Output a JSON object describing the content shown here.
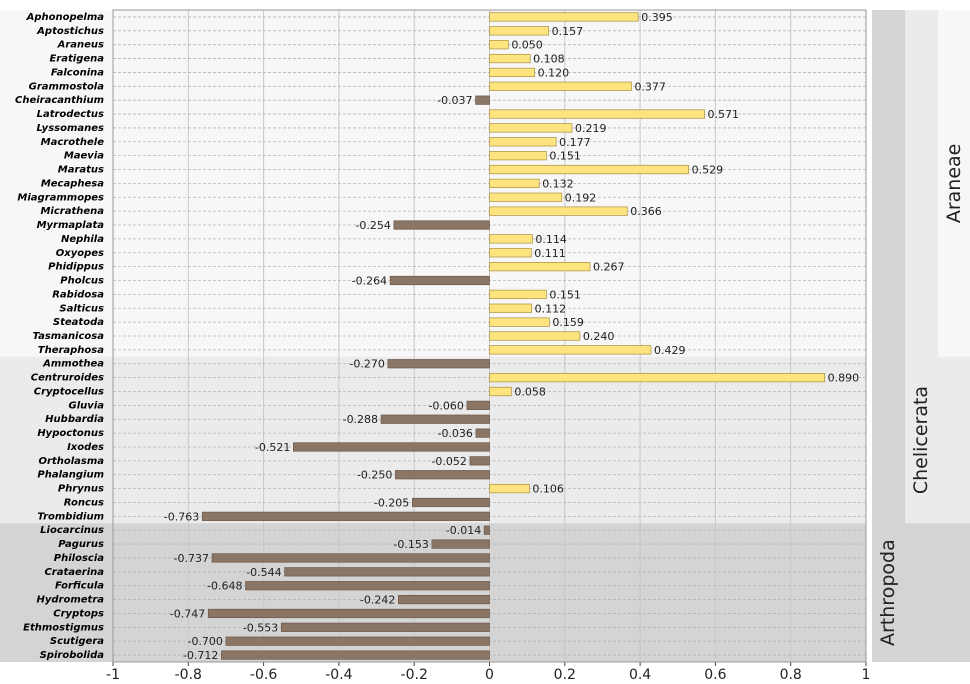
{
  "chart_data": {
    "type": "bar",
    "orientation": "horizontal",
    "categories": [
      "Aphonopelma",
      "Aptostichus",
      "Araneus",
      "Eratigena",
      "Falconina",
      "Grammostola",
      "Cheiracanthium",
      "Latrodectus",
      "Lyssomanes",
      "Macrothele",
      "Maevia",
      "Maratus",
      "Mecaphesa",
      "Miagrammopes",
      "Micrathena",
      "Myrmaplata",
      "Nephila",
      "Oxyopes",
      "Phidippus",
      "Pholcus",
      "Rabidosa",
      "Salticus",
      "Steatoda",
      "Tasmanicosa",
      "Theraphosa",
      "Ammothea",
      "Centruroides",
      "Cryptocellus",
      "Gluvia",
      "Hubbardia",
      "Hypoctonus",
      "Ixodes",
      "Ortholasma",
      "Phalangium",
      "Phrynus",
      "Roncus",
      "Trombidium",
      "Liocarcinus",
      "Pagurus",
      "Philoscia",
      "Crataerina",
      "Forficula",
      "Hydrometra",
      "Cryptops",
      "Ethmostigmus",
      "Scutigera",
      "Spirobolida"
    ],
    "values": [
      0.395,
      0.157,
      0.05,
      0.108,
      0.12,
      0.377,
      -0.037,
      0.571,
      0.219,
      0.177,
      0.151,
      0.529,
      0.132,
      0.192,
      0.366,
      -0.254,
      0.114,
      0.111,
      0.267,
      -0.264,
      0.151,
      0.112,
      0.159,
      0.24,
      0.429,
      -0.27,
      0.89,
      0.058,
      -0.06,
      -0.288,
      -0.036,
      -0.521,
      -0.052,
      -0.25,
      0.106,
      -0.205,
      -0.763,
      -0.014,
      -0.153,
      -0.737,
      -0.544,
      -0.648,
      -0.242,
      -0.747,
      -0.553,
      -0.7,
      -0.712
    ],
    "value_labels": [
      "0.395",
      "0.157",
      "0.050",
      "0.108",
      "0.120",
      "0.377",
      "-0.037",
      "0.571",
      "0.219",
      "0.177",
      "0.151",
      "0.529",
      "0.132",
      "0.192",
      "0.366",
      "-0.254",
      "0.114",
      "0.111",
      "0.267",
      "-0.264",
      "0.151",
      "0.112",
      "0.159",
      "0.240",
      "0.429",
      "-0.270",
      "0.890",
      "0.058",
      "-0.060",
      "-0.288",
      "-0.036",
      "-0.521",
      "-0.052",
      "-0.250",
      "0.106",
      "-0.205",
      "-0.763",
      "-0.014",
      "-0.153",
      "-0.737",
      "-0.544",
      "-0.648",
      "-0.242",
      "-0.747",
      "-0.553",
      "-0.700",
      "-0.712"
    ],
    "positive_color": "#fde47f",
    "negative_color": "#8b7565",
    "xlim": [
      -1,
      1
    ],
    "xticks": [
      -1,
      -0.8,
      -0.6,
      -0.4,
      -0.2,
      0,
      0.2,
      0.4,
      0.6,
      0.8,
      1
    ],
    "grid": true,
    "groups": [
      {
        "name": "Araneae",
        "span": [
          0,
          24
        ],
        "color": "#f7f7f7"
      },
      {
        "name": "Chelicerata",
        "span": [
          0,
          36
        ],
        "color": "#ebebeb"
      },
      {
        "name": "Arthropoda",
        "span": [
          0,
          46
        ],
        "color": "#d4d4d4"
      }
    ]
  }
}
